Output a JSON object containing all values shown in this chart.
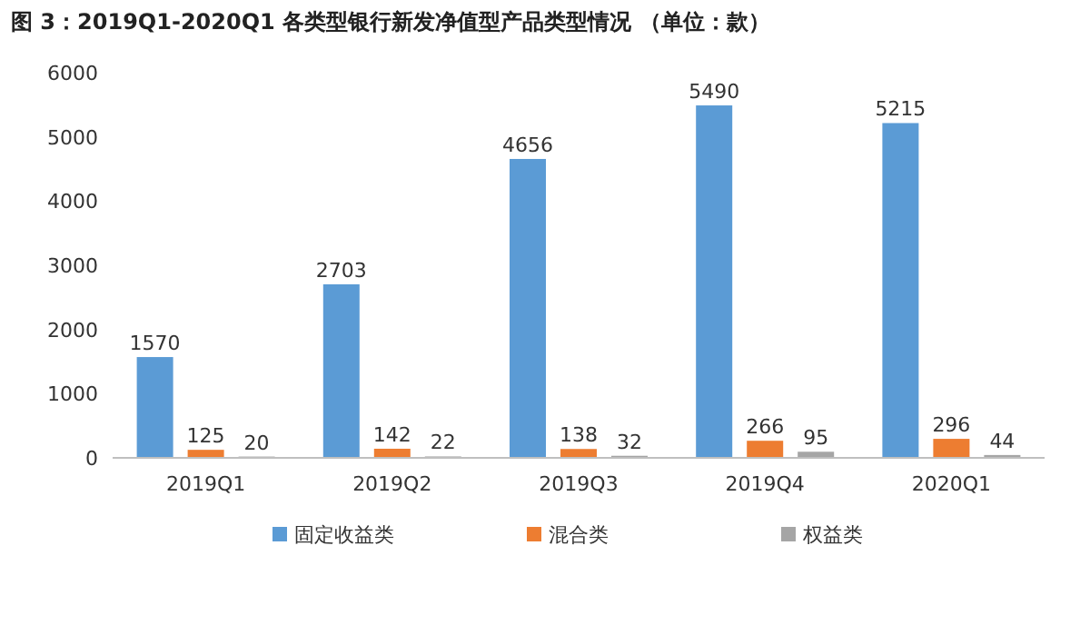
{
  "chart_data": {
    "type": "bar",
    "title": "图 3：2019Q1-2020Q1 各类型银行新发净值型产品类型情况 （单位：款）",
    "categories": [
      "2019Q1",
      "2019Q2",
      "2019Q3",
      "2019Q4",
      "2020Q1"
    ],
    "series": [
      {
        "name": "固定收益类",
        "color": "#5b9bd5",
        "values": [
          1570,
          2703,
          4656,
          5490,
          5215
        ]
      },
      {
        "name": "混合类",
        "color": "#ed7d31",
        "values": [
          125,
          142,
          138,
          266,
          296
        ]
      },
      {
        "name": "权益类",
        "color": "#a5a5a5",
        "values": [
          20,
          22,
          32,
          95,
          44
        ]
      }
    ],
    "ylim": [
      0,
      6000
    ],
    "yticks": [
      0,
      1000,
      2000,
      3000,
      4000,
      5000,
      6000
    ],
    "data_labels": true,
    "legend": "bottom",
    "grid": false
  }
}
